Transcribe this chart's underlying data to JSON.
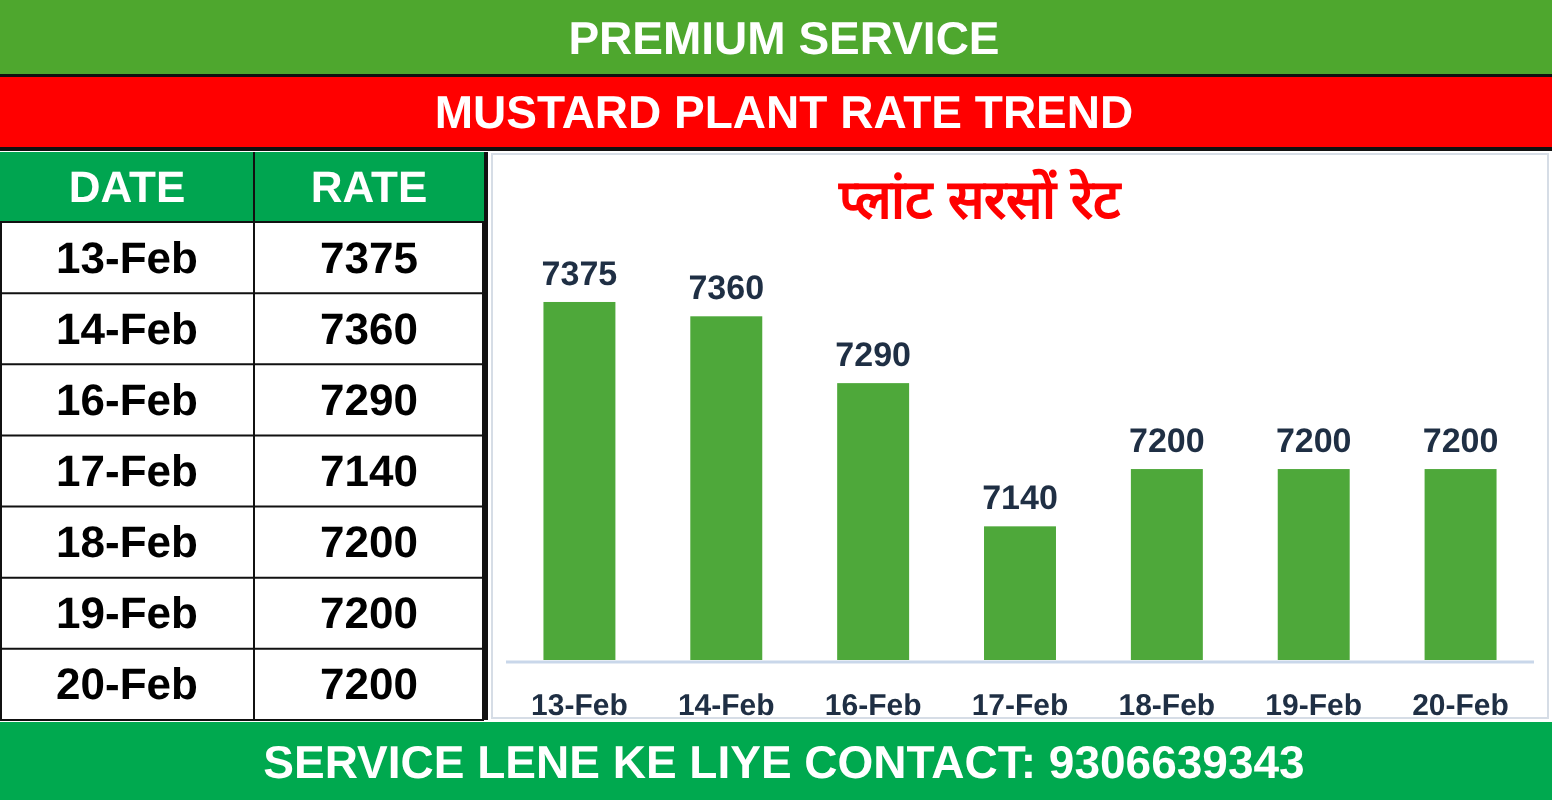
{
  "chart_data": [
    {
      "type": "other",
      "annotations": [
        "DATE",
        "RATE"
      ],
      "categories": [
        "13-Feb",
        "14-Feb",
        "16-Feb",
        "17-Feb",
        "18-Feb",
        "19-Feb",
        "20-Feb"
      ],
      "values": [
        7375,
        7360,
        7290,
        7140,
        7200,
        7200,
        7200
      ],
      "data_labels": true
    },
    {
      "type": "bar",
      "title": "MUSTARD PLANT RATE TREND",
      "subtitle": "प्लांट सरसों रेट",
      "annotations": [
        "PREMIUM SERVICE",
        "SERVICE LENE KE LIYE CONTACT: 9306639343"
      ],
      "categories": [
        "13-Feb",
        "14-Feb",
        "16-Feb",
        "17-Feb",
        "18-Feb",
        "19-Feb",
        "20-Feb"
      ],
      "values": [
        7375,
        7360,
        7290,
        7140,
        7200,
        7200,
        7200
      ],
      "color": "#4ea83a",
      "ylim": [
        7000,
        7530
      ],
      "data_labels": true
    }
  ]
}
